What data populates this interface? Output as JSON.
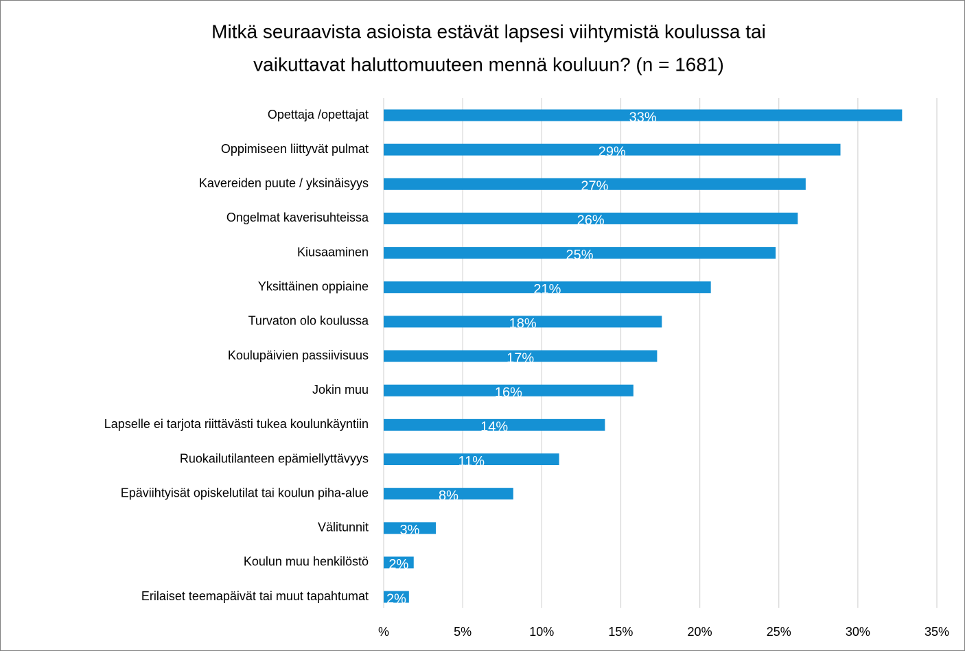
{
  "chart_data": {
    "type": "hbar",
    "title": [
      "Mitkä seuraavista asioista estävät lapsesi viihtymistä koulussa tai",
      "vaikuttavat haluttomuuteen mennä kouluun? (n = 1681)"
    ],
    "categories": [
      "Opettaja /opettajat",
      "Oppimiseen liittyvät pulmat",
      "Kavereiden puute / yksinäisyys",
      "Ongelmat kaverisuhteissa",
      "Kiusaaminen",
      "Yksittäinen oppiaine",
      "Turvaton olo koulussa",
      "Koulupäivien passiivisuus",
      "Jokin muu",
      "Lapselle ei tarjota riittävästi tukea koulunkäyntiin",
      "Ruokailutilanteen epämiellyttävyys",
      "Epäviihtyisät opiskelutilat tai koulun piha-alue",
      "Välitunnit",
      "Koulun muu henkilöstö",
      "Erilaiset teemapäivät tai muut tapahtumat"
    ],
    "values": [
      32.8,
      28.9,
      26.7,
      26.2,
      24.8,
      20.7,
      17.6,
      17.3,
      15.8,
      14.0,
      11.1,
      8.2,
      3.3,
      1.9,
      1.6
    ],
    "value_labels": [
      "33%",
      "29%",
      "27%",
      "26%",
      "25%",
      "21%",
      "18%",
      "17%",
      "16%",
      "14%",
      "11%",
      "8%",
      "3%",
      "2%",
      "2%"
    ],
    "color": "#1591d4",
    "xlim": [
      0,
      35
    ],
    "xticks": [
      {
        "value": 0,
        "label": "%"
      },
      {
        "value": 5,
        "label": "5%"
      },
      {
        "value": 10,
        "label": "10%"
      },
      {
        "value": 15,
        "label": "15%"
      },
      {
        "value": 20,
        "label": "20%"
      },
      {
        "value": 25,
        "label": "25%"
      },
      {
        "value": 30,
        "label": "30%"
      },
      {
        "value": 35,
        "label": "35%"
      }
    ],
    "grid": true
  }
}
